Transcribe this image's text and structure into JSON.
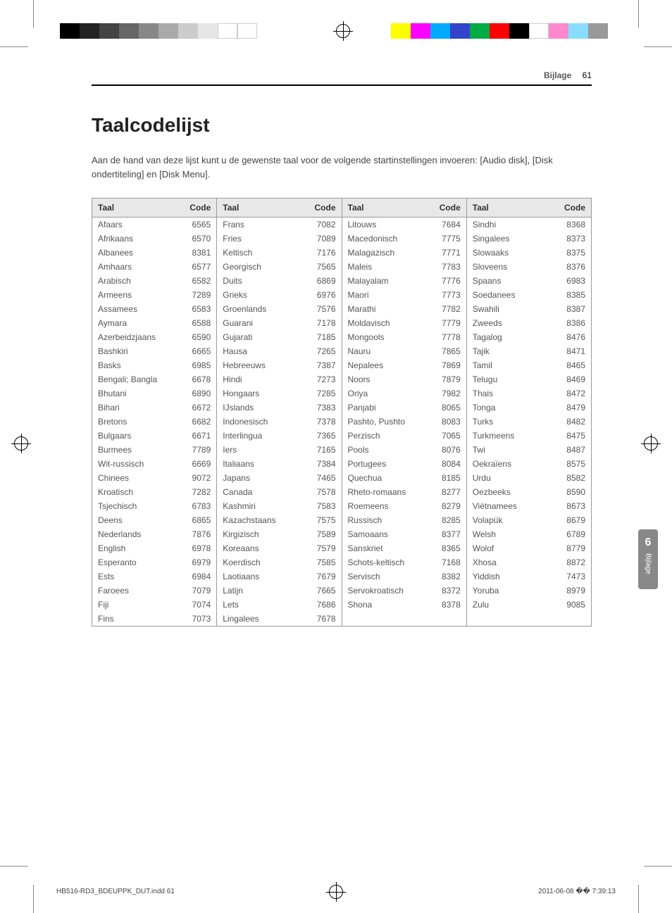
{
  "header": {
    "section": "Bijlage",
    "page": "61"
  },
  "title": "Taalcodelijst",
  "intro": "Aan de hand van deze lijst kunt u de gewenste taal voor de volgende startinstellingen invoeren: [Audio disk], [Disk ondertiteling] en [Disk Menu].",
  "col_headers": {
    "lang": "Taal",
    "code": "Code"
  },
  "columns": [
    [
      {
        "lang": "Afaars",
        "code": "6565"
      },
      {
        "lang": "Afrikaans",
        "code": "6570"
      },
      {
        "lang": "Albanees",
        "code": "8381"
      },
      {
        "lang": "Amhaars",
        "code": "6577"
      },
      {
        "lang": "Arabisch",
        "code": "6582"
      },
      {
        "lang": "Armeens",
        "code": "7289"
      },
      {
        "lang": "Assamees",
        "code": "6583"
      },
      {
        "lang": "Aymara",
        "code": "6588"
      },
      {
        "lang": "Azerbeidzjaans",
        "code": "6590"
      },
      {
        "lang": "Bashkiri",
        "code": "6665"
      },
      {
        "lang": "Basks",
        "code": "6985"
      },
      {
        "lang": "Bengali; Bangla",
        "code": "6678"
      },
      {
        "lang": "Bhutani",
        "code": "6890"
      },
      {
        "lang": "Bihari",
        "code": "6672"
      },
      {
        "lang": "Bretons",
        "code": "6682"
      },
      {
        "lang": "Bulgaars",
        "code": "6671"
      },
      {
        "lang": "Burmees",
        "code": "7789"
      },
      {
        "lang": "Wit-russisch",
        "code": "6669"
      },
      {
        "lang": "Chinees",
        "code": "9072"
      },
      {
        "lang": "Kroatisch",
        "code": "7282"
      },
      {
        "lang": "Tsjechisch",
        "code": "6783"
      },
      {
        "lang": "Deens",
        "code": "6865"
      },
      {
        "lang": "Nederlands",
        "code": "7876"
      },
      {
        "lang": "English",
        "code": "6978"
      },
      {
        "lang": "Esperanto",
        "code": "6979"
      },
      {
        "lang": "Ests",
        "code": "6984"
      },
      {
        "lang": "Faroees",
        "code": "7079"
      },
      {
        "lang": "Fiji",
        "code": "7074"
      },
      {
        "lang": "Fins",
        "code": "7073"
      }
    ],
    [
      {
        "lang": "Frans",
        "code": "7082"
      },
      {
        "lang": "Fries",
        "code": "7089"
      },
      {
        "lang": "Keltisch",
        "code": "7176"
      },
      {
        "lang": "Georgisch",
        "code": "7565"
      },
      {
        "lang": "Duits",
        "code": "6869"
      },
      {
        "lang": "Grieks",
        "code": "6976"
      },
      {
        "lang": "Groenlands",
        "code": "7576"
      },
      {
        "lang": "Guarani",
        "code": "7178"
      },
      {
        "lang": "Gujarati",
        "code": "7185"
      },
      {
        "lang": "Hausa",
        "code": "7265"
      },
      {
        "lang": "Hebreeuws",
        "code": "7387"
      },
      {
        "lang": "Hindi",
        "code": "7273"
      },
      {
        "lang": "Hongaars",
        "code": "7285"
      },
      {
        "lang": "IJslands",
        "code": "7383"
      },
      {
        "lang": "Indonesisch",
        "code": "7378"
      },
      {
        "lang": "Interlingua",
        "code": "7365"
      },
      {
        "lang": "Iers",
        "code": "7165"
      },
      {
        "lang": "Italiaans",
        "code": "7384"
      },
      {
        "lang": "Japans",
        "code": "7465"
      },
      {
        "lang": "Canada",
        "code": "7578"
      },
      {
        "lang": "Kashmiri",
        "code": "7583"
      },
      {
        "lang": "Kazachstaans",
        "code": "7575"
      },
      {
        "lang": "Kirgizisch",
        "code": "7589"
      },
      {
        "lang": "Koreaans",
        "code": "7579"
      },
      {
        "lang": "Koerdisch",
        "code": "7585"
      },
      {
        "lang": "Laotiaans",
        "code": "7679"
      },
      {
        "lang": "Latijn",
        "code": "7665"
      },
      {
        "lang": "Lets",
        "code": "7686"
      },
      {
        "lang": "Lingalees",
        "code": "7678"
      }
    ],
    [
      {
        "lang": "Litouws",
        "code": "7684"
      },
      {
        "lang": "Macedonisch",
        "code": "7775"
      },
      {
        "lang": "Malagazisch",
        "code": "7771"
      },
      {
        "lang": "Maleis",
        "code": "7783"
      },
      {
        "lang": "Malayalam",
        "code": "7776"
      },
      {
        "lang": "Maori",
        "code": "7773"
      },
      {
        "lang": "Marathi",
        "code": "7782"
      },
      {
        "lang": "Moldavisch",
        "code": "7779"
      },
      {
        "lang": "Mongools",
        "code": "7778"
      },
      {
        "lang": "Nauru",
        "code": "7865"
      },
      {
        "lang": "Nepalees",
        "code": "7869"
      },
      {
        "lang": "Noors",
        "code": "7879"
      },
      {
        "lang": "Oriya",
        "code": "7982"
      },
      {
        "lang": "Panjabi",
        "code": "8065"
      },
      {
        "lang": "Pashto, Pushto",
        "code": "8083"
      },
      {
        "lang": "Perzisch",
        "code": "7065"
      },
      {
        "lang": "Pools",
        "code": "8076"
      },
      {
        "lang": "Portugees",
        "code": "8084"
      },
      {
        "lang": "Quechua",
        "code": "8185"
      },
      {
        "lang": "Rheto-romaans",
        "code": "8277"
      },
      {
        "lang": "Roemeens",
        "code": "8279"
      },
      {
        "lang": "Russisch",
        "code": "8285"
      },
      {
        "lang": "Samoaans",
        "code": "8377"
      },
      {
        "lang": "Sanskriet",
        "code": "8365"
      },
      {
        "lang": "Schots-keltisch",
        "code": "7168"
      },
      {
        "lang": "Servisch",
        "code": "8382"
      },
      {
        "lang": "Servokroatisch",
        "code": "8372"
      },
      {
        "lang": "Shona",
        "code": "8378"
      }
    ],
    [
      {
        "lang": "Sindhi",
        "code": "8368"
      },
      {
        "lang": "Singalees",
        "code": "8373"
      },
      {
        "lang": "Slowaaks",
        "code": "8375"
      },
      {
        "lang": "Sloveens",
        "code": "8376"
      },
      {
        "lang": "Spaans",
        "code": "6983"
      },
      {
        "lang": "Soedanees",
        "code": "8385"
      },
      {
        "lang": "Swahili",
        "code": "8387"
      },
      {
        "lang": "Zweeds",
        "code": "8386"
      },
      {
        "lang": "Tagalog",
        "code": "8476"
      },
      {
        "lang": "Tajik",
        "code": "8471"
      },
      {
        "lang": "Tamil",
        "code": "8465"
      },
      {
        "lang": "Telugu",
        "code": "8469"
      },
      {
        "lang": "Thais",
        "code": "8472"
      },
      {
        "lang": "Tonga",
        "code": "8479"
      },
      {
        "lang": "Turks",
        "code": "8482"
      },
      {
        "lang": "Turkmeens",
        "code": "8475"
      },
      {
        "lang": "Twi",
        "code": "8487"
      },
      {
        "lang": "Oekraïens",
        "code": "8575"
      },
      {
        "lang": "Urdu",
        "code": "8582"
      },
      {
        "lang": "Oezbeeks",
        "code": "8590"
      },
      {
        "lang": "Viëtnamees",
        "code": "8673"
      },
      {
        "lang": "Volapük",
        "code": "8679"
      },
      {
        "lang": "Welsh",
        "code": "6789"
      },
      {
        "lang": "Wolof",
        "code": "8779"
      },
      {
        "lang": "Xhosa",
        "code": "8872"
      },
      {
        "lang": "Yiddish",
        "code": "7473"
      },
      {
        "lang": "Yoruba",
        "code": "8979"
      },
      {
        "lang": "Zulu",
        "code": "9085"
      }
    ]
  ],
  "side_tab": {
    "num": "6",
    "label": "Bijlage"
  },
  "footer": {
    "left": "HB516-RD3_BDEUPPK_DUT.indd   61",
    "right": "2011-06-08   �� 7:39:13"
  },
  "print_marks": {
    "gray_bar": [
      "#000000",
      "#222222",
      "#444444",
      "#666666",
      "#888888",
      "#aaaaaa",
      "#cccccc",
      "#e6e6e6",
      "#ffffff",
      "#ffffff"
    ],
    "color_bar_right": [
      "#ffff00",
      "#ff00ff",
      "#00aaff",
      "#3344cc",
      "#00aa44",
      "#ff0000",
      "#000000",
      "#ffffff",
      "#ff88cc",
      "#88ddff",
      "#999999"
    ]
  }
}
